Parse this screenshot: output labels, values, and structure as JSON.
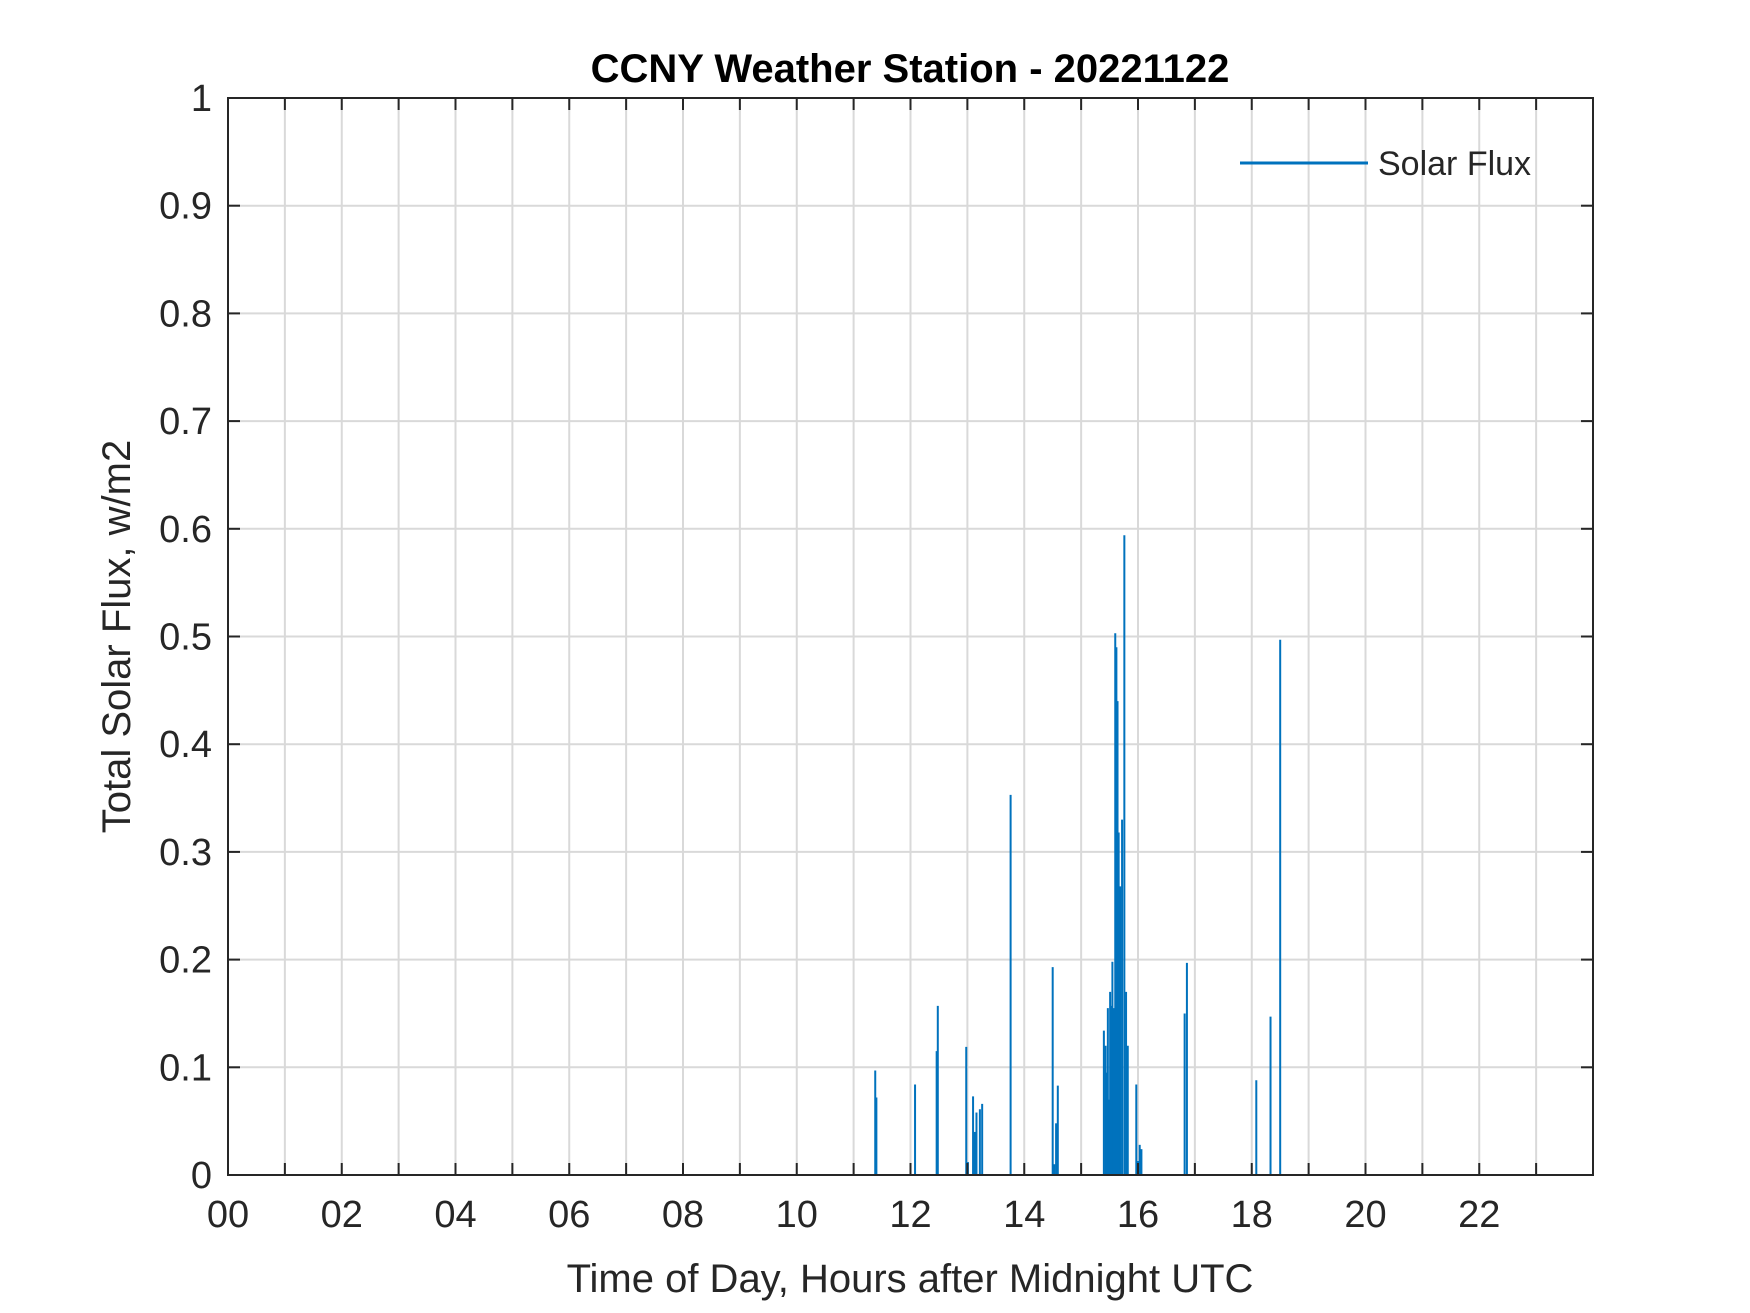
{
  "chart_data": {
    "type": "line",
    "title": "CCNY Weather Station - 20221122",
    "xlabel": "Time of Day, Hours after Midnight UTC",
    "ylabel": "Total Solar Flux, w/m2",
    "xlim": [
      0,
      24
    ],
    "ylim": [
      0,
      1
    ],
    "x_ticks": [
      0,
      2,
      4,
      6,
      8,
      10,
      12,
      14,
      16,
      18,
      20,
      22
    ],
    "x_tick_labels": [
      "00",
      "02",
      "04",
      "06",
      "08",
      "10",
      "12",
      "14",
      "16",
      "18",
      "20",
      "22"
    ],
    "y_ticks": [
      0,
      0.1,
      0.2,
      0.3,
      0.4,
      0.5,
      0.6,
      0.7,
      0.8,
      0.9,
      1
    ],
    "y_tick_labels": [
      "0",
      "0.1",
      "0.2",
      "0.3",
      "0.4",
      "0.5",
      "0.6",
      "0.7",
      "0.8",
      "0.9",
      "1"
    ],
    "grid": true,
    "legend_position": "top-right",
    "series": [
      {
        "name": "Solar Flux",
        "color": "#0072BD",
        "spikes": [
          [
            11.38,
            0.097
          ],
          [
            11.4,
            0.072
          ],
          [
            12.08,
            0.084
          ],
          [
            12.46,
            0.115
          ],
          [
            12.48,
            0.157
          ],
          [
            12.98,
            0.119
          ],
          [
            13.01,
            0.012
          ],
          [
            13.1,
            0.073
          ],
          [
            13.13,
            0.04
          ],
          [
            13.16,
            0.058
          ],
          [
            13.22,
            0.061
          ],
          [
            13.26,
            0.066
          ],
          [
            13.76,
            0.353
          ],
          [
            14.5,
            0.193
          ],
          [
            14.53,
            0.01
          ],
          [
            14.56,
            0.048
          ],
          [
            14.59,
            0.083
          ],
          [
            15.4,
            0.134
          ],
          [
            15.43,
            0.12
          ],
          [
            15.45,
            0.095
          ],
          [
            15.47,
            0.155
          ],
          [
            15.49,
            0.07
          ],
          [
            15.51,
            0.17
          ],
          [
            15.53,
            0.157
          ],
          [
            15.55,
            0.198
          ],
          [
            15.57,
            0.155
          ],
          [
            15.6,
            0.503
          ],
          [
            15.62,
            0.49
          ],
          [
            15.64,
            0.44
          ],
          [
            15.66,
            0.318
          ],
          [
            15.69,
            0.268
          ],
          [
            15.72,
            0.33
          ],
          [
            15.76,
            0.594
          ],
          [
            15.79,
            0.17
          ],
          [
            15.82,
            0.12
          ],
          [
            15.97,
            0.084
          ],
          [
            16.0,
            0.013
          ],
          [
            16.03,
            0.028
          ],
          [
            16.06,
            0.024
          ],
          [
            16.82,
            0.15
          ],
          [
            16.86,
            0.197
          ],
          [
            18.08,
            0.088
          ],
          [
            18.33,
            0.147
          ],
          [
            18.5,
            0.497
          ]
        ]
      }
    ]
  }
}
